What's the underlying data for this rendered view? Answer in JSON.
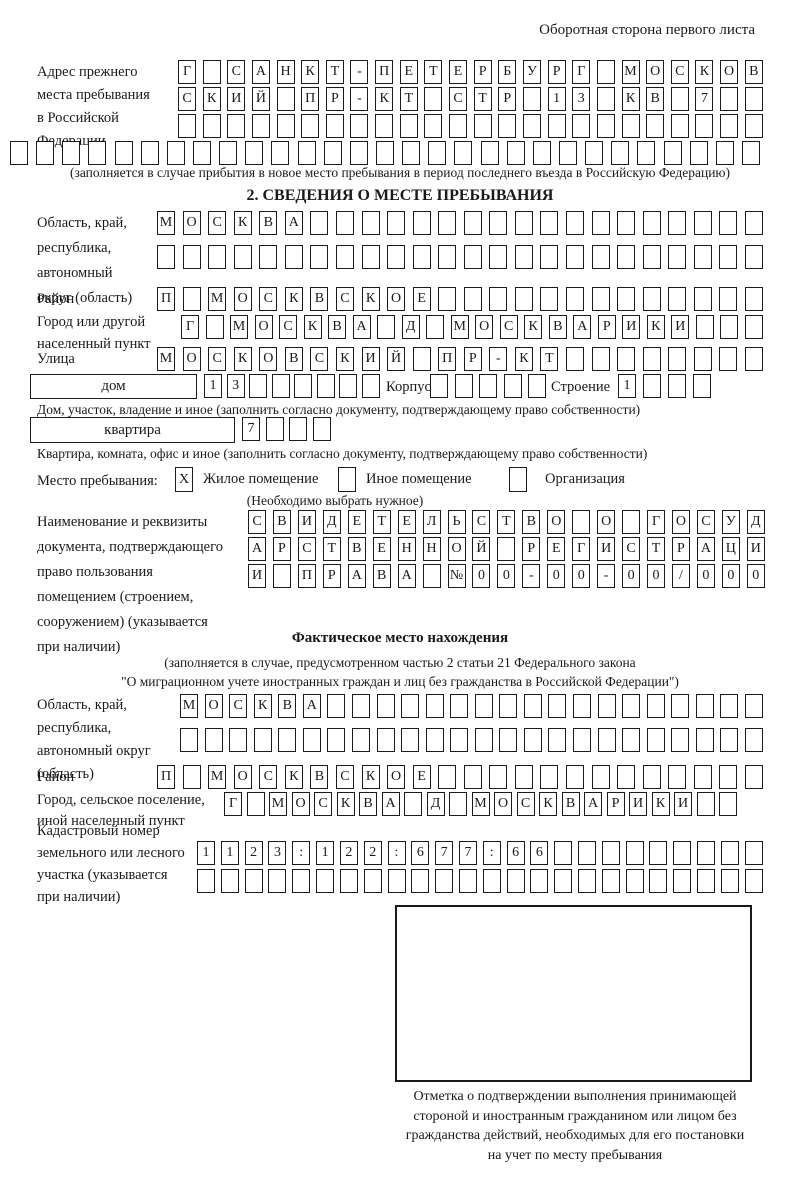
{
  "colors": {
    "ink": "#1a1a1a",
    "background": "#ffffff"
  },
  "page_header": {
    "back_side_note": "Оборотная сторона первого листа"
  },
  "prev_address": {
    "label_lines": [
      "Адрес прежнего",
      "места пребывания",
      "в Российской",
      "Федерации"
    ],
    "row1": [
      "Г",
      "",
      "С",
      "А",
      "Н",
      "К",
      "Т",
      "-",
      "П",
      "Е",
      "Т",
      "Е",
      "Р",
      "Б",
      "У",
      "Р",
      "Г",
      "",
      "М",
      "О",
      "С",
      "К",
      "О",
      "В"
    ],
    "row2": [
      "С",
      "К",
      "И",
      "Й",
      "",
      "П",
      "Р",
      "-",
      "К",
      "Т",
      "",
      "С",
      "Т",
      "Р",
      "",
      "1",
      "3",
      "",
      "К",
      "В",
      "",
      "7",
      "",
      ""
    ],
    "row3": [
      "",
      "",
      "",
      "",
      "",
      "",
      "",
      "",
      "",
      "",
      "",
      "",
      "",
      "",
      "",
      "",
      "",
      "",
      "",
      "",
      "",
      "",
      "",
      ""
    ],
    "row4": [
      "",
      "",
      "",
      "",
      "",
      "",
      "",
      "",
      "",
      "",
      "",
      "",
      "",
      "",
      "",
      "",
      "",
      "",
      "",
      "",
      "",
      "",
      "",
      "",
      "",
      "",
      "",
      "",
      ""
    ],
    "note": "(заполняется в случае прибытия в новое место пребывания в период последнего въезда в Российскую Федерацию)"
  },
  "section2": {
    "title": "2. СВЕДЕНИЯ О МЕСТЕ ПРЕБЫВАНИЯ",
    "region": {
      "label_lines": [
        "Область, край,",
        "республика,",
        "автономный",
        "округ (область)"
      ],
      "row1": [
        "М",
        "О",
        "С",
        "К",
        "В",
        "А",
        "",
        "",
        "",
        "",
        "",
        "",
        "",
        "",
        "",
        "",
        "",
        "",
        "",
        "",
        "",
        "",
        "",
        ""
      ],
      "row2": [
        "",
        "",
        "",
        "",
        "",
        "",
        "",
        "",
        "",
        "",
        "",
        "",
        "",
        "",
        "",
        "",
        "",
        "",
        "",
        "",
        "",
        "",
        "",
        ""
      ]
    },
    "district": {
      "label": "Район",
      "row": [
        "П",
        "",
        "М",
        "О",
        "С",
        "К",
        "В",
        "С",
        "К",
        "О",
        "Е",
        "",
        "",
        "",
        "",
        "",
        "",
        "",
        "",
        "",
        "",
        "",
        "",
        ""
      ]
    },
    "city": {
      "label_lines": [
        "Город или другой",
        "населенный пункт"
      ],
      "row": [
        "Г",
        "",
        "М",
        "О",
        "С",
        "К",
        "В",
        "А",
        "",
        "Д",
        "",
        "М",
        "О",
        "С",
        "К",
        "В",
        "А",
        "Р",
        "И",
        "К",
        "И",
        "",
        "",
        ""
      ]
    },
    "street": {
      "label": "Улица",
      "row": [
        "М",
        "О",
        "С",
        "К",
        "О",
        "В",
        "С",
        "К",
        "И",
        "Й",
        "",
        "П",
        "Р",
        "-",
        "К",
        "Т",
        "",
        "",
        "",
        "",
        "",
        "",
        "",
        ""
      ]
    },
    "house": {
      "box_label": "дом",
      "cells": [
        "1",
        "3",
        "",
        "",
        "",
        "",
        "",
        ""
      ],
      "korpus_label": "Корпус",
      "korpus_cells": [
        "",
        "",
        "",
        "",
        ""
      ],
      "stroenie_label": "Строение",
      "stroenie_cells": [
        "1",
        "",
        "",
        ""
      ]
    },
    "house_note": "Дом, участок, владение и иное (заполнить согласно документу, подтверждающему право собственности)",
    "apartment": {
      "box_label": "квартира",
      "cells": [
        "7",
        "",
        "",
        ""
      ]
    },
    "apartment_note": "Квартира, комната, офис и иное (заполнить согласно документу, подтверждающему право собственности)",
    "stay_type": {
      "label": "Место пребывания:",
      "options": [
        {
          "label": "Жилое помещение",
          "checked": "X"
        },
        {
          "label": "Иное помещение",
          "checked": ""
        },
        {
          "label": "Организация",
          "checked": ""
        }
      ],
      "hint": "(Необходимо выбрать нужное)"
    },
    "document": {
      "label_lines": [
        "Наименование и реквизиты",
        "документа, подтверждающего",
        "право пользования",
        "помещением (строением,",
        "сооружением) (указывается",
        "при наличии)"
      ],
      "row1": [
        "С",
        "В",
        "И",
        "Д",
        "Е",
        "Т",
        "Е",
        "Л",
        "Ь",
        "С",
        "Т",
        "В",
        "О",
        "",
        "О",
        "",
        "Г",
        "О",
        "С",
        "У",
        "Д"
      ],
      "row2": [
        "А",
        "Р",
        "С",
        "Т",
        "В",
        "Е",
        "Н",
        "Н",
        "О",
        "Й",
        "",
        "Р",
        "Е",
        "Г",
        "И",
        "С",
        "Т",
        "Р",
        "А",
        "Ц",
        "И"
      ],
      "row3": [
        "И",
        "",
        "П",
        "Р",
        "А",
        "В",
        "А",
        "",
        "№",
        "0",
        "0",
        "-",
        "0",
        "0",
        "-",
        "0",
        "0",
        "/",
        "0",
        "0",
        "0"
      ]
    }
  },
  "actual_location": {
    "title": "Фактическое место нахождения",
    "note_lines": [
      "(заполняется в случае, предусмотренном частью 2 статьи 21 Федерального закона",
      "\"О миграционном учете иностранных граждан и лиц без гражданства в Российской Федерации\")"
    ],
    "region": {
      "label_lines": [
        "Область, край,",
        "республика,",
        "автономный округ",
        "(область)"
      ],
      "row1": [
        "М",
        "О",
        "С",
        "К",
        "В",
        "А",
        "",
        "",
        "",
        "",
        "",
        "",
        "",
        "",
        "",
        "",
        "",
        "",
        "",
        "",
        "",
        "",
        "",
        ""
      ],
      "row2": [
        "",
        "",
        "",
        "",
        "",
        "",
        "",
        "",
        "",
        "",
        "",
        "",
        "",
        "",
        "",
        "",
        "",
        "",
        "",
        "",
        "",
        "",
        "",
        ""
      ]
    },
    "district": {
      "label": "Район",
      "row": [
        "П",
        "",
        "М",
        "О",
        "С",
        "К",
        "В",
        "С",
        "К",
        "О",
        "Е",
        "",
        "",
        "",
        "",
        "",
        "",
        "",
        "",
        "",
        "",
        "",
        "",
        ""
      ]
    },
    "city": {
      "label_lines": [
        "Город, сельское поселение,",
        "иной населенный пункт"
      ],
      "row": [
        "Г",
        "",
        "М",
        "О",
        "С",
        "К",
        "В",
        "А",
        "",
        "Д",
        "",
        "М",
        "О",
        "С",
        "К",
        "В",
        "А",
        "Р",
        "И",
        "К",
        "И",
        "",
        ""
      ]
    },
    "cadastral": {
      "label_lines": [
        "Кадастровый номер",
        "земельного или лесного",
        "участка (указывается",
        "при наличии)"
      ],
      "row1": [
        "1",
        "1",
        "2",
        "3",
        ":",
        "1",
        "2",
        "2",
        ":",
        "6",
        "7",
        "7",
        ":",
        "6",
        "6",
        "",
        "",
        "",
        "",
        "",
        "",
        "",
        "",
        ""
      ],
      "row2": [
        "",
        "",
        "",
        "",
        "",
        "",
        "",
        "",
        "",
        "",
        "",
        "",
        "",
        "",
        "",
        "",
        "",
        "",
        "",
        "",
        "",
        "",
        "",
        ""
      ]
    },
    "stamp_caption_lines": [
      "Отметка о подтверждении выполнения принимающей",
      "стороной и иностранным гражданином или лицом без",
      "гражданства действий, необходимых для его постановки",
      "на учет по месту пребывания"
    ]
  }
}
